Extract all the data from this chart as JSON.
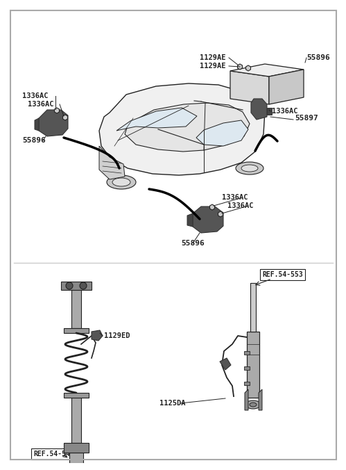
{
  "bg_color": "#ffffff",
  "line_color": "#222222",
  "part_color": "#555555",
  "border_color": "#aaaaaa",
  "labels": {
    "top_left_label1": "1336AC",
    "top_left_label2": "1336AC",
    "top_left_part": "55896",
    "top_right_label1": "1129AE",
    "top_right_label2": "1129AE",
    "top_right_part1": "55896",
    "top_right_part2": "55897",
    "top_right_part3": "1336AC",
    "mid_right_label1": "1336AC",
    "mid_right_label2": "1336AC",
    "mid_right_part": "55896",
    "bottom_left_ref": "REF.54-546",
    "bottom_left_label": "1129ED",
    "bottom_right_ref": "REF.54-553",
    "bottom_right_label": "1125DA"
  },
  "font_size_label": 7.5,
  "font_size_ref": 7.0
}
